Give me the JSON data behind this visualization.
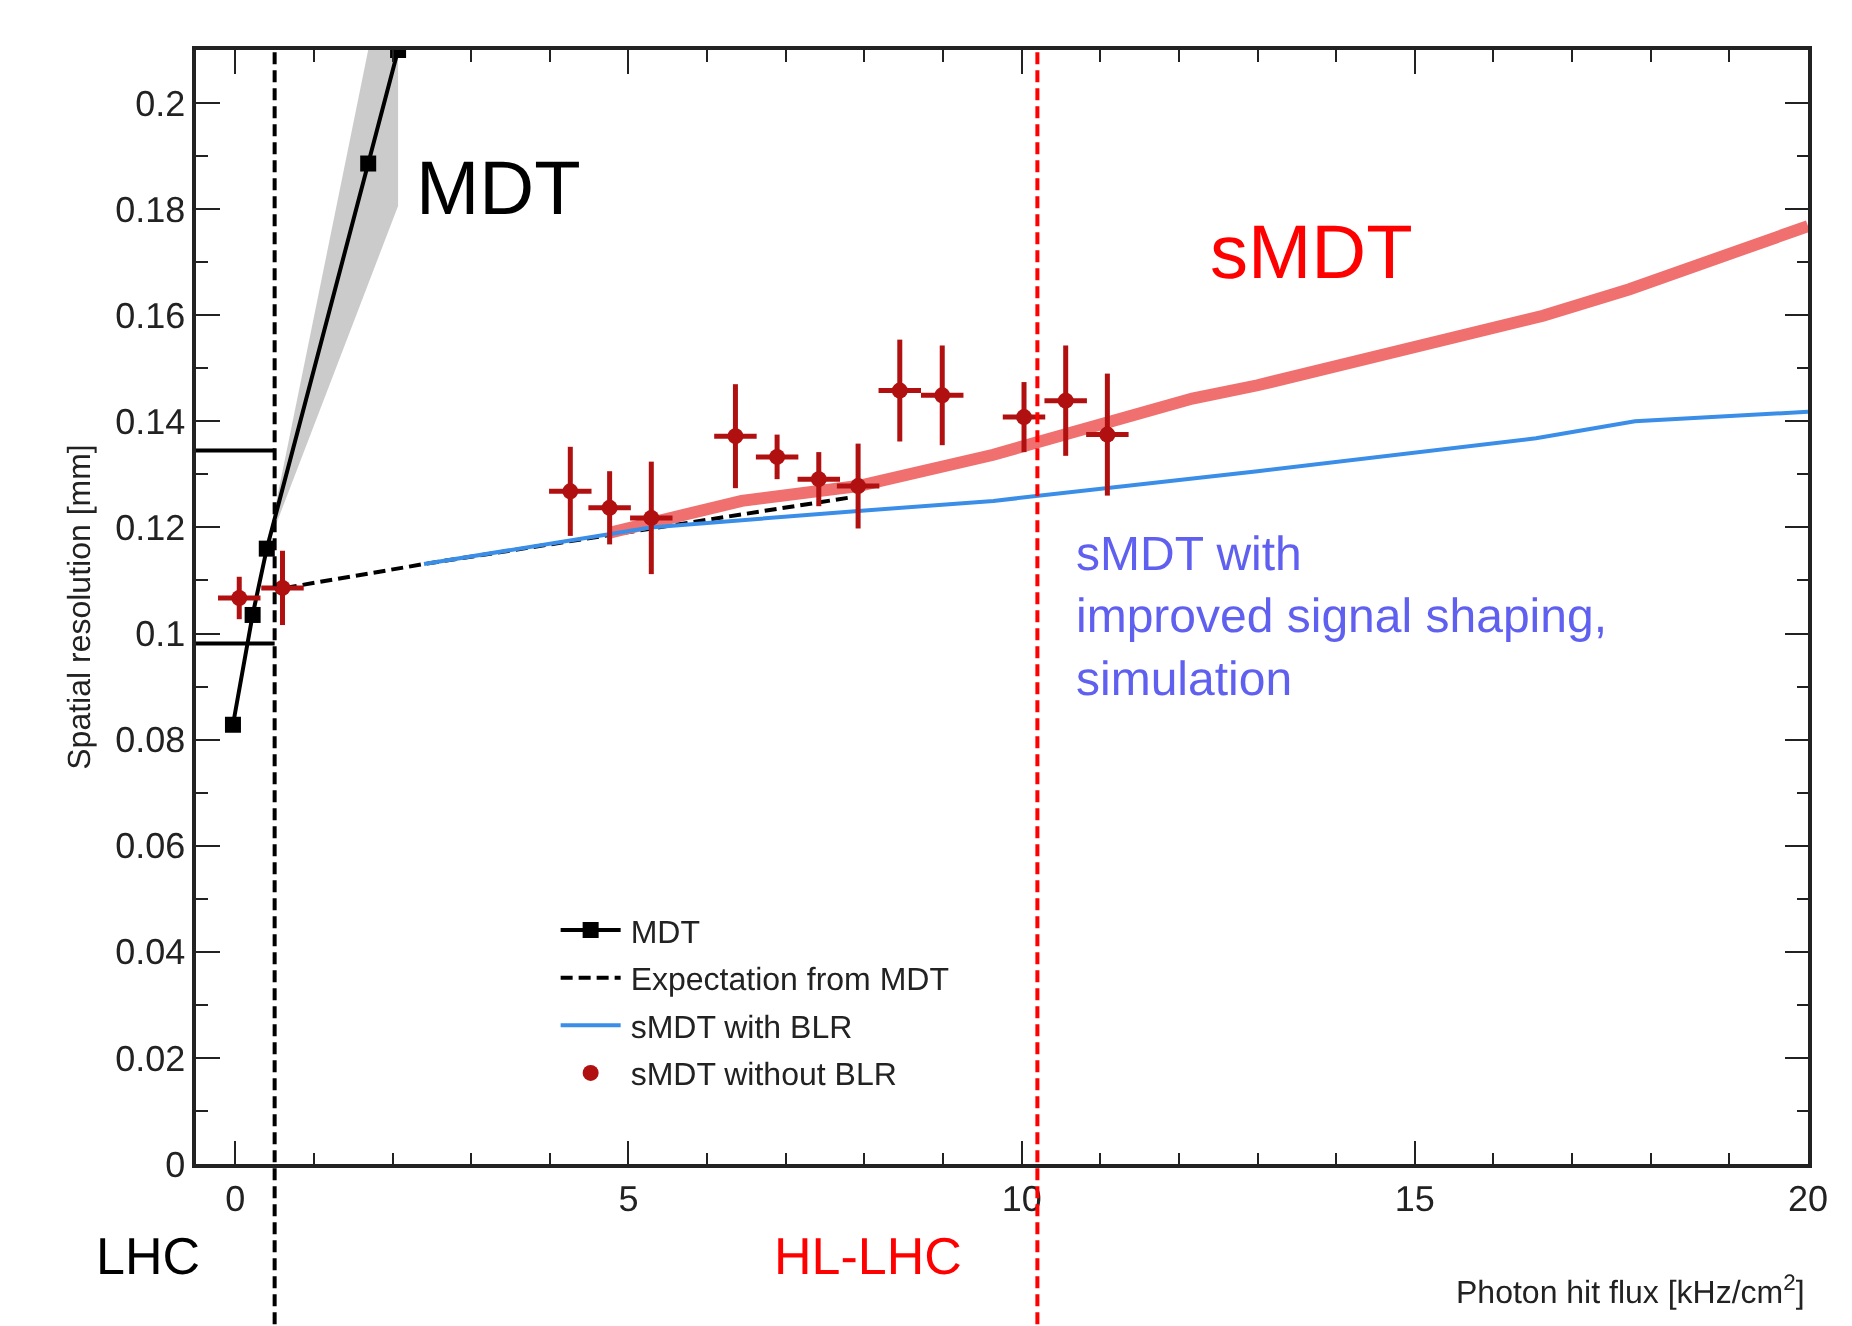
{
  "chart_data": {
    "type": "line",
    "xlabel": "Photon hit flux [kHz/cm$^{2}$]",
    "ylabel": "Spatial resolution [mm]",
    "xlim": [
      -0.5,
      20
    ],
    "ylim": [
      0,
      0.21
    ],
    "xticks": [
      0,
      5,
      10,
      15,
      20
    ],
    "yticks": [
      0,
      0.02,
      0.04,
      0.06,
      0.08,
      0.1,
      0.12,
      0.14,
      0.16,
      0.18,
      0.2
    ],
    "legend": "bottom",
    "series": [
      {
        "name": "MDT",
        "type": "line",
        "color": "#000000",
        "marker": "square",
        "x": [
          -0.03,
          0.22,
          0.4,
          1.69,
          2.07
        ],
        "values": [
          0.0828,
          0.1035,
          0.116,
          0.1886,
          0.21
        ],
        "lower": [
          null,
          null,
          0.116,
          0.1659,
          0.1806
        ],
        "upper": [
          null,
          null,
          0.116,
          0.21,
          0.21
        ]
      },
      {
        "name": "Expectation from MDT",
        "color": "#000000",
        "line_style": "dashed",
        "x": [
          0.63,
          2.4,
          7.8
        ],
        "values": [
          0.1086,
          0.1131,
          0.1256
        ]
      },
      {
        "name": "sMDT without BLR",
        "type": "scatter",
        "color": "#b01010",
        "marker": "circle",
        "x": [
          0.05,
          0.6,
          4.26,
          4.76,
          5.29,
          6.36,
          6.89,
          7.42,
          7.92,
          8.45,
          8.99,
          10.03,
          10.56,
          11.09
        ],
        "values": [
          0.1067,
          0.1086,
          0.1268,
          0.1237,
          0.1218,
          0.1372,
          0.1333,
          0.1291,
          0.1278,
          0.1458,
          0.1449,
          0.1408,
          0.1439,
          0.1375
        ],
        "errors": [
          0.004,
          0.007,
          0.0084,
          0.0069,
          0.0106,
          0.0098,
          0.0042,
          0.0051,
          0.008,
          0.0096,
          0.0094,
          0.0066,
          0.0104,
          0.0115
        ],
        "xerrors": [
          0.27,
          0.27,
          0.27,
          0.27,
          0.27,
          0.27,
          0.27,
          0.27,
          0.27,
          0.27,
          0.27,
          0.27,
          0.27,
          0.27
        ]
      },
      {
        "color": "#f07070",
        "x": [
          4.76,
          6.44,
          7.92,
          9.64,
          12.17,
          13,
          16.63,
          17.73,
          20
        ],
        "values": [
          0.119,
          0.125,
          0.1278,
          0.1337,
          0.1443,
          0.1468,
          0.1599,
          0.1649,
          0.1768
        ]
      },
      {
        "name": "sMDT with BLR",
        "color": "#3a8ee8",
        "x": [
          2.4,
          5.28,
          7.92,
          9.64,
          13.0,
          16.54,
          17.8,
          20
        ],
        "values": [
          0.1131,
          0.12,
          0.1231,
          0.125,
          0.1306,
          0.1368,
          0.14,
          0.1418
        ]
      },
      {
        "color": "#000000",
        "x": [
          -0.5,
          0.5
        ],
        "values": [
          0.1345,
          0.1345
        ]
      },
      {
        "color": "#000000",
        "x": [
          -0.5,
          0.5
        ],
        "values": [
          0.0981,
          0.0981
        ]
      }
    ],
    "ref_lines": [
      {
        "axis": "x",
        "value": 0.5,
        "color": "#000000",
        "line_style": "dashed"
      },
      {
        "axis": "x",
        "value": 10.2,
        "color": "#ff0000",
        "line_style": "dashed"
      }
    ],
    "annotations": [
      "MDT",
      "sMDT",
      "sMDT with\nimproved signal shaping,\nsimulation",
      "LHC",
      "HL-LHC"
    ]
  }
}
